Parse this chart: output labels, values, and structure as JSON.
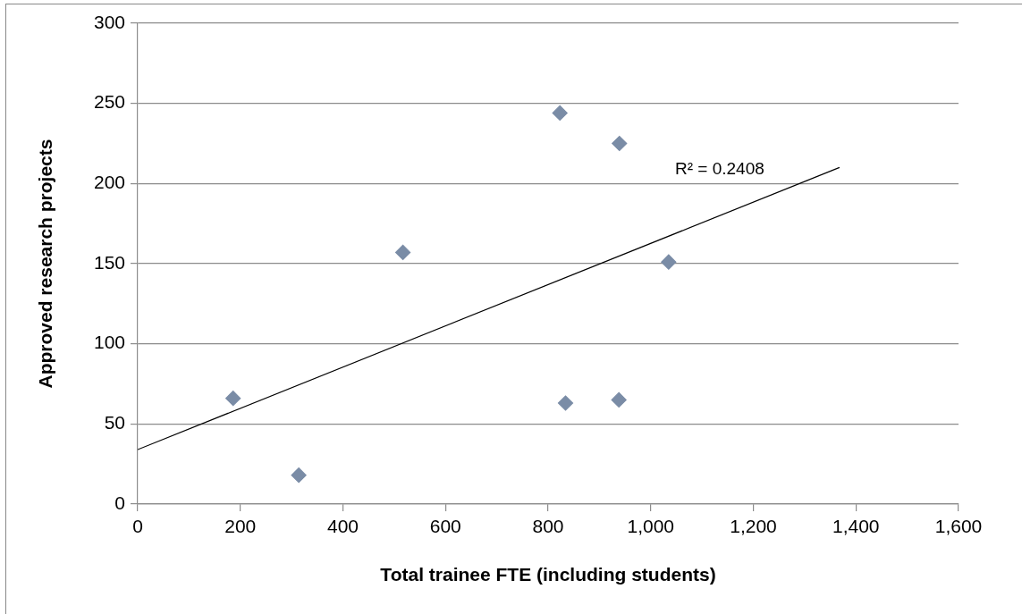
{
  "chart_data": {
    "type": "scatter",
    "xlabel": "Total trainee FTE (including students)",
    "ylabel": "Approved research projects",
    "series": [
      {
        "color": "#7a8ca6",
        "marker": "diamond",
        "x": [
          186,
          314,
          517,
          823,
          939,
          1035,
          834,
          938
        ],
        "values": [
          66,
          18,
          157,
          244,
          225,
          151,
          63,
          65
        ]
      },
      {
        "type": "line",
        "color": "#000000",
        "marker": "none",
        "x": [
          0,
          1368
        ],
        "values": [
          34,
          210
        ]
      }
    ],
    "xlim": [
      0,
      1600
    ],
    "xticks": [
      0,
      200,
      400,
      600,
      800,
      {
        "value": 1000,
        "label": "1,000"
      },
      {
        "value": 1200,
        "label": "1,200"
      },
      {
        "value": 1400,
        "label": "1,400"
      },
      {
        "value": 1600,
        "label": "1,600"
      }
    ],
    "ylim": [
      0,
      300
    ],
    "yticks": [
      0,
      50,
      100,
      150,
      200,
      250,
      300
    ],
    "grid": "y",
    "legend": false,
    "annotations": [
      "R² = 0.2408"
    ]
  }
}
